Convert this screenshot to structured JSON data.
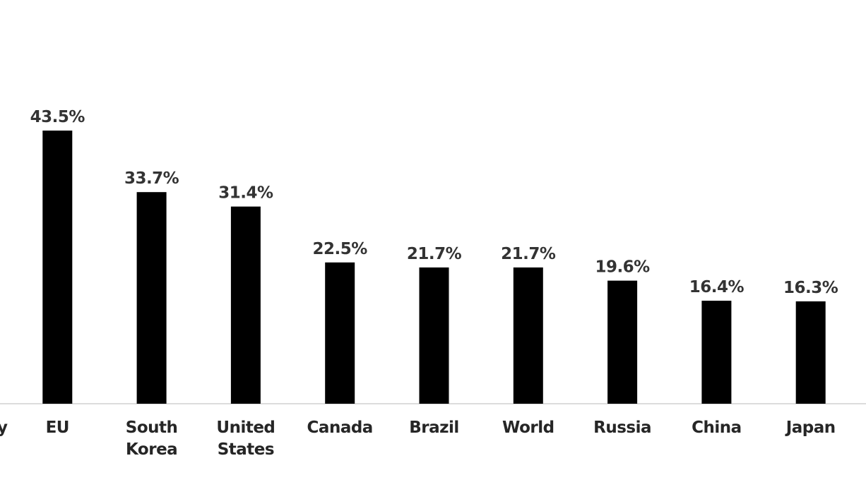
{
  "chart_data": {
    "type": "bar",
    "categories": [
      "y",
      "EU",
      "South Korea",
      "United States",
      "Canada",
      "Brazil",
      "World",
      "Russia",
      "China",
      "Japan"
    ],
    "values": [
      null,
      43.5,
      33.7,
      31.4,
      22.5,
      21.7,
      21.7,
      19.6,
      16.4,
      16.3
    ],
    "value_labels": [
      null,
      "43.5%",
      "33.7%",
      "31.4%",
      "22.5%",
      "21.7%",
      "21.7%",
      "19.6%",
      "16.4%",
      "16.3%"
    ],
    "color": "#000000"
  }
}
